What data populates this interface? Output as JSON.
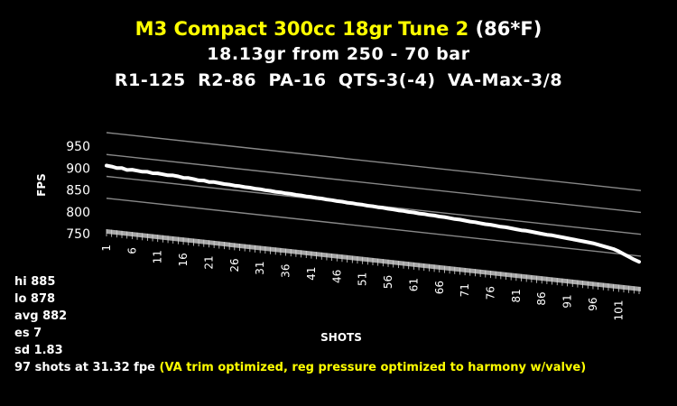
{
  "title": {
    "line1_main": "M3 Compact  300cc 18gr Tune 2",
    "line1_suffix": "(86*F)",
    "line2": "18.13gr from 250 - 70 bar",
    "line3": "R1-125  R2-86  PA-16  QTS-3(-4)  VA-Max-3/8"
  },
  "chart_data": {
    "type": "line",
    "title": "",
    "xlabel": "SHOTS",
    "ylabel": "FPS",
    "ylim": [
      750,
      950
    ],
    "y_ticks": [
      750,
      800,
      850,
      900,
      950
    ],
    "x_tick_labels": [
      "1",
      "6",
      "11",
      "16",
      "21",
      "26",
      "31",
      "36",
      "41",
      "46",
      "51",
      "56",
      "61",
      "66",
      "71",
      "76",
      "81",
      "86",
      "91",
      "96",
      "101"
    ],
    "x": [
      1,
      2,
      3,
      4,
      5,
      6,
      7,
      8,
      9,
      10,
      11,
      12,
      13,
      14,
      15,
      16,
      17,
      18,
      19,
      20,
      21,
      22,
      23,
      24,
      25,
      26,
      27,
      28,
      29,
      30,
      31,
      32,
      33,
      34,
      35,
      36,
      37,
      38,
      39,
      40,
      41,
      42,
      43,
      44,
      45,
      46,
      47,
      48,
      49,
      50,
      51,
      52,
      53,
      54,
      55,
      56,
      57,
      58,
      59,
      60,
      61,
      62,
      63,
      64,
      65,
      66,
      67,
      68,
      69,
      70,
      71,
      72,
      73,
      74,
      75,
      76,
      77,
      78,
      79,
      80,
      81,
      82,
      83,
      84,
      85,
      86,
      87,
      88,
      89,
      90,
      91,
      92,
      93,
      94,
      95,
      96,
      97,
      98,
      99,
      100,
      101,
      102,
      103,
      104,
      105
    ],
    "values": [
      885,
      884,
      882,
      883,
      880,
      882,
      881,
      880,
      881,
      879,
      880,
      879,
      878,
      879,
      878,
      876,
      877,
      876,
      874,
      875,
      873,
      874,
      873,
      872,
      872,
      871,
      871,
      870,
      870,
      869,
      869,
      868,
      868,
      867,
      867,
      866,
      866,
      865,
      865,
      864,
      864,
      863,
      863,
      862,
      862,
      861,
      861,
      860,
      860,
      859,
      859,
      858,
      858,
      857,
      857,
      856,
      856,
      855,
      855,
      854,
      854,
      853,
      853,
      852,
      852,
      851,
      851,
      850,
      849,
      849,
      848,
      847,
      847,
      846,
      845,
      845,
      844,
      843,
      843,
      842,
      841,
      840,
      840,
      839,
      838,
      837,
      836,
      836,
      835,
      834,
      833,
      832,
      831,
      830,
      829,
      828,
      826,
      824,
      822,
      820,
      816,
      811,
      806,
      801,
      797
    ],
    "grid": true,
    "series_color": "#ffffff",
    "gridline_color": "#888888",
    "floor_color": "#a6a6a6"
  },
  "stats": {
    "hi": "hi 885",
    "lo": "lo 878",
    "avg": "avg 882",
    "es": "es 7",
    "sd": "sd 1.83",
    "shots": "97 shots at 31.32 fpe",
    "note": "(VA trim optimized, reg pressure optimized to harmony w/valve)"
  }
}
